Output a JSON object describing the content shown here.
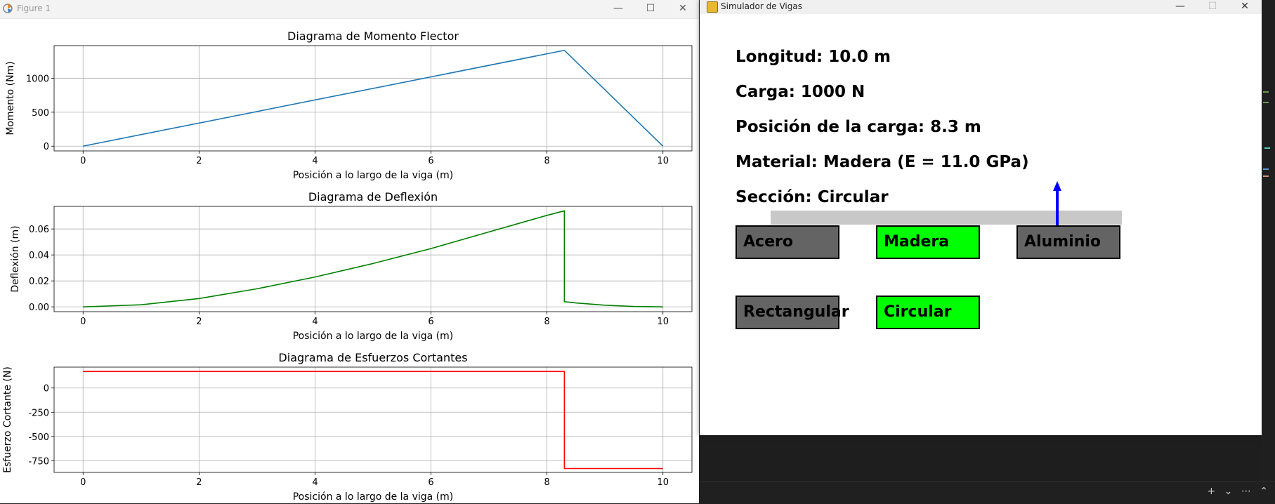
{
  "figure_window": {
    "title": "Figure 1",
    "controls": {
      "minimize": "—",
      "maximize": "☐",
      "close": "✕"
    }
  },
  "simulator_window": {
    "title": "Simulador de Vigas",
    "controls": {
      "minimize": "—",
      "maximize": "☐",
      "close": "✕"
    },
    "info": {
      "longitud": "Longitud: 10.0 m",
      "carga": "Carga: 1000 N",
      "posicion": "Posición de la carga: 8.3 m",
      "material": "Material: Madera (E = 11.0 GPa)",
      "seccion": "Sección: Circular"
    },
    "material_buttons": [
      {
        "label": "Acero",
        "selected": false
      },
      {
        "label": "Madera",
        "selected": true
      },
      {
        "label": "Aluminio",
        "selected": false
      }
    ],
    "section_buttons": [
      {
        "label": "Rectangular",
        "selected": false
      },
      {
        "label": "Circular",
        "selected": true
      }
    ],
    "colors": {
      "selected": "#00ff00",
      "unselected": "#646464",
      "beam": "#c8c8c8",
      "arrow": "#0000ff"
    },
    "beam": {
      "length_m": 10.0,
      "load_position_m": 8.3
    }
  },
  "taskbar": {
    "icons": "+ ⌄ ⋯ ⌃"
  },
  "chart_data": [
    {
      "type": "line",
      "title": "Diagrama de Momento Flector",
      "xlabel": "Posición a lo largo de la viga (m)",
      "ylabel": "Momento (Nm)",
      "color": "#1f77b4",
      "xlim": [
        -0.5,
        10.5
      ],
      "ylim": [
        -70,
        1480
      ],
      "xticks": [
        0,
        2,
        4,
        6,
        8,
        10
      ],
      "yticks": [
        0,
        500,
        1000
      ],
      "grid": true,
      "x": [
        0,
        8.3,
        10
      ],
      "y": [
        0,
        1411,
        0
      ]
    },
    {
      "type": "line",
      "title": "Diagrama de Deflexión",
      "xlabel": "Posición a lo largo de la viga (m)",
      "ylabel": "Deflexión (m)",
      "color": "#008000",
      "xlim": [
        -0.5,
        10.5
      ],
      "ylim": [
        -0.0037,
        0.0774
      ],
      "xticks": [
        0,
        2,
        4,
        6,
        8,
        10
      ],
      "yticks": [
        0.0,
        0.02,
        0.04,
        0.06
      ],
      "ytick_labels": [
        "0.00",
        "0.02",
        "0.04",
        "0.06"
      ],
      "grid": true,
      "x": [
        0,
        1,
        2,
        3,
        4,
        5,
        6,
        7,
        8,
        8.3,
        8.3,
        8.5,
        9,
        9.5,
        10
      ],
      "y": [
        0,
        0.0016,
        0.0064,
        0.0139,
        0.023,
        0.0334,
        0.0449,
        0.0577,
        0.0705,
        0.074,
        0.004,
        0.003,
        0.0013,
        0.0003,
        0
      ]
    },
    {
      "type": "line",
      "title": "Diagrama de Esfuerzos Cortantes",
      "xlabel": "Posición a lo largo de la viga (m)",
      "ylabel": "Esfuerzo Cortante (N)",
      "color": "#ff0000",
      "xlim": [
        -0.5,
        10.5
      ],
      "ylim": [
        -870,
        215
      ],
      "xticks": [
        0,
        2,
        4,
        6,
        8,
        10
      ],
      "yticks": [
        -750,
        -500,
        -250,
        0
      ],
      "grid": true,
      "x": [
        0,
        8.3,
        8.3,
        10
      ],
      "y": [
        170,
        170,
        -830,
        -830
      ]
    }
  ]
}
